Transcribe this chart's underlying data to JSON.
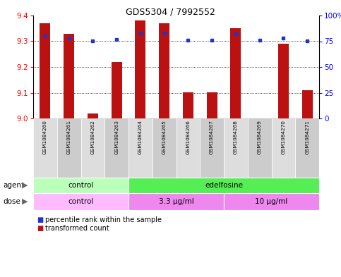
{
  "title": "GDS5304 / 7992552",
  "samples": [
    "GSM1084260",
    "GSM1084261",
    "GSM1084262",
    "GSM1084263",
    "GSM1084264",
    "GSM1084265",
    "GSM1084266",
    "GSM1084267",
    "GSM1084268",
    "GSM1084269",
    "GSM1084270",
    "GSM1084271"
  ],
  "transformed_counts": [
    9.37,
    9.33,
    9.02,
    9.22,
    9.38,
    9.37,
    9.1,
    9.1,
    9.35,
    9.0,
    9.29,
    9.11
  ],
  "percentile_ranks": [
    80,
    78,
    75,
    77,
    83,
    83,
    76,
    76,
    82,
    76,
    78,
    75
  ],
  "ylim_left": [
    9.0,
    9.4
  ],
  "ylim_right": [
    0,
    100
  ],
  "yticks_left": [
    9.0,
    9.1,
    9.2,
    9.3,
    9.4
  ],
  "yticks_right": [
    0,
    25,
    50,
    75,
    100
  ],
  "ytick_labels_right": [
    "0",
    "25",
    "50",
    "75",
    "100%"
  ],
  "bar_color": "#bb1111",
  "dot_color": "#2233cc",
  "agent_groups": [
    {
      "label": "control",
      "start": 0,
      "end": 4,
      "color": "#bbffbb"
    },
    {
      "label": "edelfosine",
      "start": 4,
      "end": 12,
      "color": "#55ee55"
    }
  ],
  "dose_groups": [
    {
      "label": "control",
      "start": 0,
      "end": 4,
      "color": "#ffbbff"
    },
    {
      "label": "3.3 μg/ml",
      "start": 4,
      "end": 8,
      "color": "#ee88ee"
    },
    {
      "label": "10 μg/ml",
      "start": 8,
      "end": 12,
      "color": "#ee88ee"
    }
  ],
  "legend_bar_label": "transformed count",
  "legend_dot_label": "percentile rank within the sample",
  "background_color": "#ffffff",
  "xtick_bg_odd": "#cccccc",
  "xtick_bg_even": "#dddddd"
}
